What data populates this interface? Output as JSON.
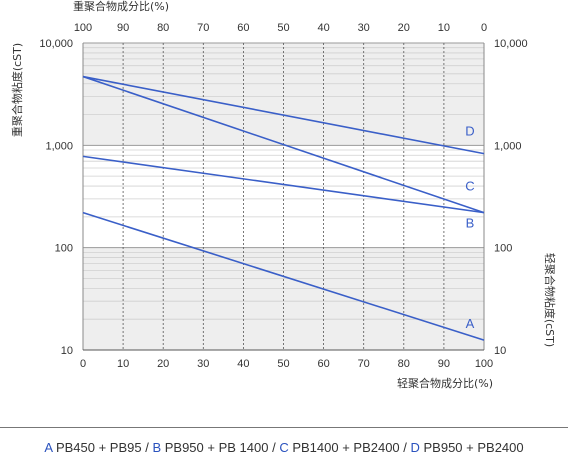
{
  "chart_data": {
    "type": "line",
    "title": "",
    "top_axis_label": "重聚合物成分比(%)",
    "xlabel": "轻聚合物成分比(%)",
    "ylabel_left": "重聚合物粘度(cST)",
    "ylabel_right": "轻聚合物粘度(cST)",
    "x_ticks": [
      "0",
      "10",
      "20",
      "30",
      "40",
      "50",
      "60",
      "70",
      "80",
      "90",
      "100"
    ],
    "top_ticks": [
      "100",
      "90",
      "80",
      "70",
      "60",
      "50",
      "40",
      "30",
      "20",
      "10",
      "0"
    ],
    "y_scale": "log",
    "ylim": [
      10,
      10000
    ],
    "y_ticks_left": [
      "10,000",
      "1,000",
      "100",
      "10"
    ],
    "y_ticks_right": [
      "10,000",
      "1,000",
      "100",
      "10"
    ],
    "grid": true,
    "series": [
      {
        "name": "A",
        "color": "#3a5fc8",
        "x": [
          0,
          100
        ],
        "y": [
          220,
          12.5
        ]
      },
      {
        "name": "B",
        "color": "#3a5fc8",
        "x": [
          0,
          100
        ],
        "y": [
          780,
          220
        ]
      },
      {
        "name": "C",
        "color": "#3a5fc8",
        "x": [
          0,
          100
        ],
        "y": [
          4700,
          220
        ]
      },
      {
        "name": "D",
        "color": "#3a5fc8",
        "x": [
          0,
          100
        ],
        "y": [
          4700,
          830
        ]
      }
    ]
  },
  "legend": {
    "items": [
      {
        "key": "A",
        "text": "PB450 + PB95"
      },
      {
        "key": "B",
        "text": "PB950 + PB 1400"
      },
      {
        "key": "C",
        "text": "PB1400 + PB2400"
      },
      {
        "key": "D",
        "text": "PB950 + PB2400"
      }
    ],
    "separator": "/"
  }
}
